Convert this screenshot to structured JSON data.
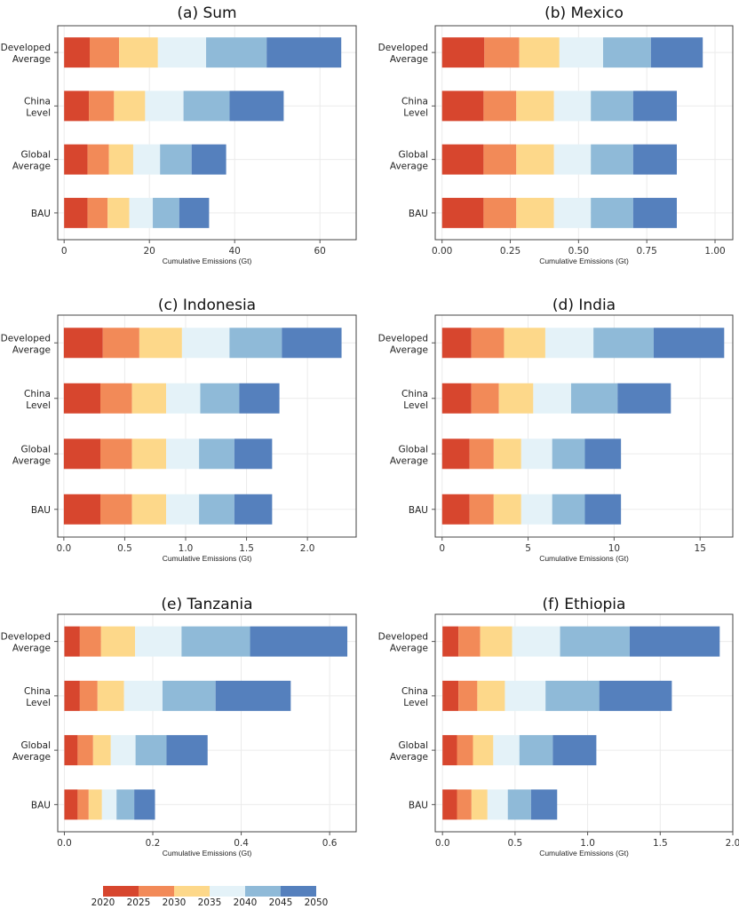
{
  "legend": {
    "labels": [
      "2020",
      "2025",
      "2030",
      "2035",
      "2040",
      "2045",
      "2050"
    ],
    "colors": [
      "#d7462e",
      "#f28a58",
      "#fdd88a",
      "#e4f2f8",
      "#8fbad8",
      "#5580bd"
    ]
  },
  "chart_data": [
    {
      "type": "bar",
      "stacked": true,
      "orientation": "horizontal",
      "title": "(a) Sum",
      "xlabel": "Cumulative Emissions (Gt)",
      "xlim": [
        -1.5,
        68.5
      ],
      "xticks": [
        "0",
        "20",
        "40",
        "60"
      ],
      "xtick_values": [
        0,
        20,
        40,
        60
      ],
      "categories": [
        "Developed Average",
        "China Level",
        "Global Average",
        "BAU"
      ],
      "series": [
        {
          "values": [
            6.0,
            5.8,
            5.5,
            5.5
          ]
        },
        {
          "values": [
            6.9,
            5.9,
            5.0,
            4.7
          ]
        },
        {
          "values": [
            9.1,
            7.3,
            5.7,
            5.1
          ]
        },
        {
          "values": [
            11.3,
            9.0,
            6.3,
            5.5
          ]
        },
        {
          "values": [
            14.2,
            10.8,
            7.4,
            6.2
          ]
        },
        {
          "values": [
            17.5,
            12.7,
            8.1,
            7.0
          ]
        }
      ]
    },
    {
      "type": "bar",
      "stacked": true,
      "orientation": "horizontal",
      "title": "(b) Mexico",
      "xlabel": "Cumulative Emissions (Gt)",
      "xlim": [
        -0.025,
        1.065
      ],
      "xticks": [
        "0.00",
        "0.25",
        "0.50",
        "0.75",
        "1.00"
      ],
      "xtick_values": [
        0,
        0.25,
        0.5,
        0.75,
        1.0
      ],
      "categories": [
        "Developed Average",
        "China Level",
        "Global Average",
        "BAU"
      ],
      "series": [
        {
          "values": [
            0.155,
            0.152,
            0.152,
            0.152
          ]
        },
        {
          "values": [
            0.128,
            0.12,
            0.12,
            0.12
          ]
        },
        {
          "values": [
            0.147,
            0.138,
            0.138,
            0.138
          ]
        },
        {
          "values": [
            0.16,
            0.135,
            0.135,
            0.135
          ]
        },
        {
          "values": [
            0.175,
            0.155,
            0.155,
            0.155
          ]
        },
        {
          "values": [
            0.19,
            0.16,
            0.16,
            0.16
          ]
        }
      ]
    },
    {
      "type": "bar",
      "stacked": true,
      "orientation": "horizontal",
      "title": "(c) Indonesia",
      "xlabel": "Cumulative Emissions (Gt)",
      "xlim": [
        -0.05,
        2.4
      ],
      "xticks": [
        "0.0",
        "0.5",
        "1.0",
        "1.5",
        "2.0"
      ],
      "xtick_values": [
        0,
        0.5,
        1.0,
        1.5,
        2.0
      ],
      "categories": [
        "Developed Average",
        "China Level",
        "Global Average",
        "BAU"
      ],
      "series": [
        {
          "values": [
            0.32,
            0.3,
            0.3,
            0.3
          ]
        },
        {
          "values": [
            0.3,
            0.26,
            0.26,
            0.26
          ]
        },
        {
          "values": [
            0.35,
            0.28,
            0.28,
            0.28
          ]
        },
        {
          "values": [
            0.39,
            0.28,
            0.27,
            0.27
          ]
        },
        {
          "values": [
            0.43,
            0.32,
            0.29,
            0.29
          ]
        },
        {
          "values": [
            0.49,
            0.33,
            0.31,
            0.31
          ]
        }
      ]
    },
    {
      "type": "bar",
      "stacked": true,
      "orientation": "horizontal",
      "title": "(d) India",
      "xlabel": "Cumulative Emissions (Gt)",
      "xlim": [
        -0.4,
        16.9
      ],
      "xticks": [
        "0",
        "5",
        "10",
        "15"
      ],
      "xtick_values": [
        0,
        5,
        10,
        15
      ],
      "categories": [
        "Developed Average",
        "China Level",
        "Global Average",
        "BAU"
      ],
      "series": [
        {
          "values": [
            1.7,
            1.7,
            1.6,
            1.6
          ]
        },
        {
          "values": [
            1.9,
            1.6,
            1.4,
            1.4
          ]
        },
        {
          "values": [
            2.4,
            2.0,
            1.6,
            1.6
          ]
        },
        {
          "values": [
            2.8,
            2.2,
            1.8,
            1.8
          ]
        },
        {
          "values": [
            3.5,
            2.7,
            1.9,
            1.9
          ]
        },
        {
          "values": [
            4.1,
            3.1,
            2.1,
            2.1
          ]
        }
      ]
    },
    {
      "type": "bar",
      "stacked": true,
      "orientation": "horizontal",
      "title": "(e) Tanzania",
      "xlabel": "Cumulative Emissions (Gt)",
      "xlim": [
        -0.015,
        0.66
      ],
      "xticks": [
        "0.0",
        "0.2",
        "0.4",
        "0.6"
      ],
      "xtick_values": [
        0,
        0.2,
        0.4,
        0.6
      ],
      "categories": [
        "Developed Average",
        "China Level",
        "Global Average",
        "BAU"
      ],
      "series": [
        {
          "values": [
            0.035,
            0.035,
            0.03,
            0.03
          ]
        },
        {
          "values": [
            0.048,
            0.04,
            0.035,
            0.025
          ]
        },
        {
          "values": [
            0.077,
            0.06,
            0.04,
            0.03
          ]
        },
        {
          "values": [
            0.105,
            0.087,
            0.056,
            0.033
          ]
        },
        {
          "values": [
            0.155,
            0.12,
            0.07,
            0.04
          ]
        },
        {
          "values": [
            0.22,
            0.17,
            0.093,
            0.047
          ]
        }
      ]
    },
    {
      "type": "bar",
      "stacked": true,
      "orientation": "horizontal",
      "title": "(f) Ethiopia",
      "xlabel": "Cumulative Emissions (Gt)",
      "xlim": [
        -0.05,
        2.0
      ],
      "xticks": [
        "0.0",
        "0.5",
        "1.0",
        "1.5",
        "2.0"
      ],
      "xtick_values": [
        0,
        0.5,
        1.0,
        1.5,
        2.0
      ],
      "categories": [
        "Developed Average",
        "China Level",
        "Global Average",
        "BAU"
      ],
      "series": [
        {
          "values": [
            0.11,
            0.11,
            0.1,
            0.1
          ]
        },
        {
          "values": [
            0.15,
            0.13,
            0.11,
            0.1
          ]
        },
        {
          "values": [
            0.22,
            0.19,
            0.14,
            0.11
          ]
        },
        {
          "values": [
            0.33,
            0.28,
            0.18,
            0.14
          ]
        },
        {
          "values": [
            0.48,
            0.37,
            0.23,
            0.16
          ]
        },
        {
          "values": [
            0.62,
            0.5,
            0.3,
            0.18
          ]
        }
      ]
    }
  ]
}
